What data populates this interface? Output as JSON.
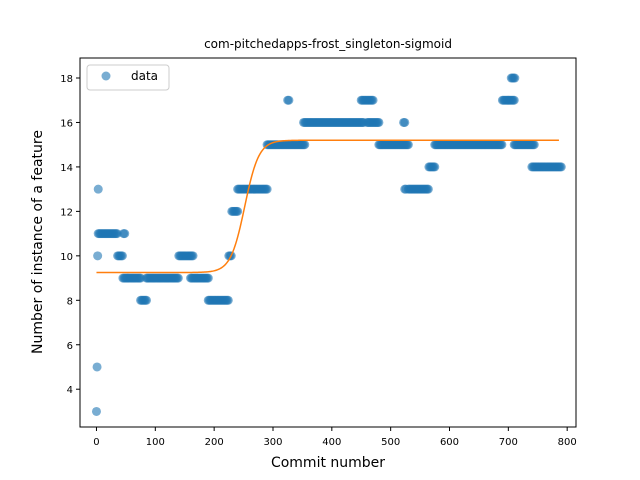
{
  "chart_data": {
    "type": "scatter",
    "title": "com-pitchedapps-frost_singleton-sigmoid",
    "xlabel": "Commit number",
    "ylabel": "Number of instance of a feature",
    "xlim": [
      -28,
      815
    ],
    "ylim": [
      2.3,
      18.9
    ],
    "xticks": [
      0,
      100,
      200,
      300,
      400,
      500,
      600,
      700,
      800
    ],
    "yticks": [
      4,
      6,
      8,
      10,
      12,
      14,
      16,
      18
    ],
    "grid": false,
    "legend": {
      "position": "top-left",
      "entries": [
        "data"
      ]
    },
    "colors": {
      "data": "#1f77b4",
      "fit": "#ff7f0e"
    },
    "series": [
      {
        "name": "data",
        "kind": "points",
        "segments": [
          [
            0,
            0,
            3
          ],
          [
            1,
            1,
            5
          ],
          [
            2,
            2,
            10
          ],
          [
            3,
            3,
            13
          ],
          [
            3,
            35,
            11
          ],
          [
            36,
            45,
            10
          ],
          [
            46,
            48,
            11
          ],
          [
            45,
            75,
            9
          ],
          [
            75,
            85,
            8
          ],
          [
            85,
            140,
            9
          ],
          [
            140,
            165,
            10
          ],
          [
            160,
            190,
            9
          ],
          [
            190,
            225,
            8
          ],
          [
            225,
            230,
            10
          ],
          [
            230,
            240,
            12
          ],
          [
            240,
            290,
            13
          ],
          [
            290,
            355,
            15
          ],
          [
            325,
            328,
            17
          ],
          [
            352,
            455,
            16
          ],
          [
            450,
            470,
            17
          ],
          [
            460,
            480,
            16
          ],
          [
            480,
            530,
            15
          ],
          [
            522,
            524,
            16
          ],
          [
            524,
            526,
            13
          ],
          [
            530,
            565,
            13
          ],
          [
            565,
            575,
            14
          ],
          [
            575,
            690,
            15
          ],
          [
            690,
            710,
            17
          ],
          [
            705,
            712,
            18
          ],
          [
            710,
            745,
            15
          ],
          [
            740,
            790,
            14
          ]
        ]
      },
      {
        "name": "fit",
        "kind": "sigmoid",
        "low": 9.25,
        "high": 15.2,
        "midpoint": 252,
        "scale": 12,
        "x_range": [
          0,
          787
        ]
      }
    ]
  }
}
